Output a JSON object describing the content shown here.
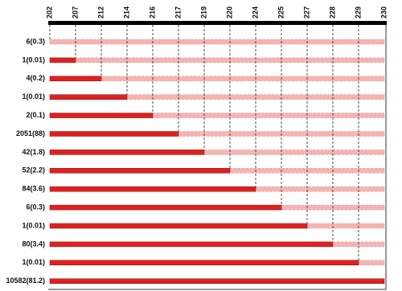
{
  "chart_data": {
    "type": "bar",
    "orientation": "horizontal",
    "xticks": [
      202,
      207,
      212,
      214,
      216,
      217,
      219,
      220,
      224,
      225,
      227,
      228,
      229,
      230
    ],
    "xlim": [
      202,
      230
    ],
    "categories": [
      "6(0.3)",
      "1(0.01)",
      "4(0.2)",
      "1(0.01)",
      "2(0.1)",
      "2051(88)",
      "42(1.8)",
      "52(2.2)",
      "84(3.6)",
      "6(0.3)",
      "1(0.01)",
      "80(3.4)",
      "1(0.01)",
      "10582(81.2)"
    ],
    "values": [
      202,
      207,
      212,
      214,
      216,
      217,
      219,
      220,
      224,
      225,
      227,
      228,
      229,
      230
    ],
    "color": "#e02020",
    "rest_color": "#f4b4b4"
  }
}
